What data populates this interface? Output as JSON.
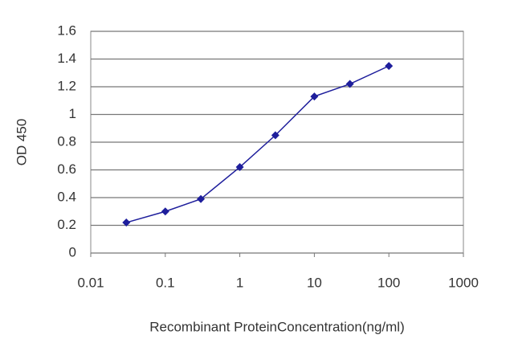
{
  "chart_data": {
    "type": "line",
    "xlabel": "Recombinant ProteinConcentration(ng/ml)",
    "ylabel": "OD 450",
    "x": [
      0.03,
      0.1,
      0.3,
      1,
      3,
      10,
      30,
      100
    ],
    "values": [
      0.22,
      0.3,
      0.39,
      0.62,
      0.85,
      1.13,
      1.22,
      1.35
    ],
    "color": "#1e1e9c",
    "xscale": "log",
    "xlim": [
      0.01,
      1000
    ],
    "xticks": [
      0.01,
      0.1,
      1,
      10,
      100,
      1000
    ],
    "ylim": [
      0,
      1.6
    ],
    "yticks": [
      0,
      0.2,
      0.4,
      0.6,
      0.8,
      1,
      1.2,
      1.4,
      1.6
    ],
    "grid": true
  }
}
